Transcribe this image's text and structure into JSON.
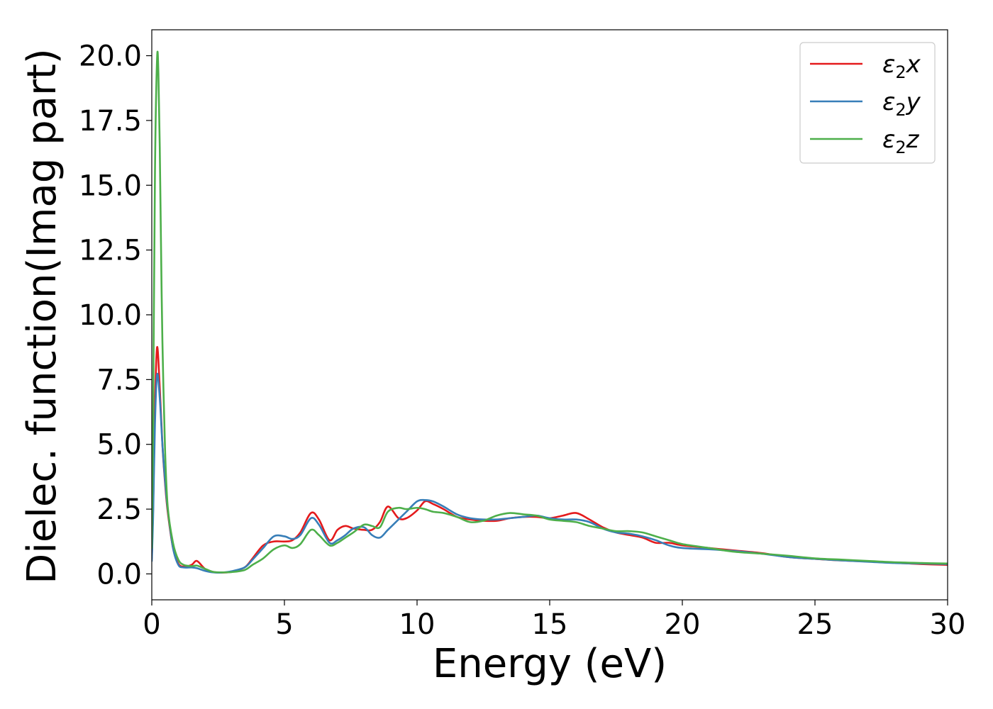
{
  "chart_data": {
    "type": "line",
    "title": "",
    "xlabel": "Energy (eV)",
    "ylabel": "Dielec. function(Imag part)",
    "xlim": [
      0,
      30
    ],
    "ylim": [
      -1.0,
      21.0
    ],
    "x_ticks": [
      0,
      5,
      10,
      15,
      20,
      25,
      30
    ],
    "x_tick_labels": [
      "0",
      "5",
      "10",
      "15",
      "20",
      "25",
      "30"
    ],
    "y_ticks": [
      0.0,
      2.5,
      5.0,
      7.5,
      10.0,
      12.5,
      15.0,
      17.5,
      20.0
    ],
    "y_tick_labels": [
      "0.0",
      "2.5",
      "5.0",
      "7.5",
      "10.0",
      "12.5",
      "15.0",
      "17.5",
      "20.0"
    ],
    "grid": false,
    "legend_position": "top-right",
    "series": [
      {
        "name": "ε2x",
        "legend_base": "ε",
        "legend_sub": "2",
        "legend_suffix": "x",
        "color": "#e41a1c",
        "x": [
          0,
          0.05,
          0.12,
          0.2,
          0.3,
          0.4,
          0.5,
          0.6,
          0.8,
          1.0,
          1.2,
          1.5,
          1.7,
          2.0,
          2.3,
          2.6,
          3.0,
          3.5,
          3.8,
          4.2,
          4.6,
          5.0,
          5.3,
          5.6,
          6.0,
          6.3,
          6.7,
          7.0,
          7.3,
          7.6,
          8.0,
          8.3,
          8.6,
          8.9,
          9.3,
          9.6,
          10.0,
          10.3,
          10.6,
          11.0,
          11.5,
          12.0,
          12.5,
          13.0,
          13.5,
          14.0,
          14.5,
          15.0,
          15.5,
          16.0,
          16.5,
          17.0,
          17.5,
          18.0,
          18.5,
          19.0,
          19.5,
          20.0,
          21.0,
          22.0,
          23.0,
          24.0,
          25.0,
          26.0,
          27.0,
          28.0,
          29.0,
          30.0
        ],
        "values": [
          0.6,
          2.5,
          6.5,
          8.75,
          7.2,
          5.0,
          3.5,
          2.4,
          1.0,
          0.4,
          0.28,
          0.35,
          0.5,
          0.2,
          0.08,
          0.05,
          0.08,
          0.25,
          0.6,
          1.1,
          1.25,
          1.25,
          1.3,
          1.6,
          2.35,
          2.1,
          1.3,
          1.7,
          1.85,
          1.75,
          1.7,
          1.7,
          2.0,
          2.6,
          2.15,
          2.15,
          2.45,
          2.8,
          2.7,
          2.5,
          2.2,
          2.1,
          2.05,
          2.05,
          2.15,
          2.2,
          2.2,
          2.15,
          2.25,
          2.35,
          2.1,
          1.8,
          1.6,
          1.5,
          1.4,
          1.2,
          1.2,
          1.1,
          1.0,
          0.9,
          0.8,
          0.65,
          0.58,
          0.52,
          0.48,
          0.43,
          0.38,
          0.35
        ]
      },
      {
        "name": "ε2y",
        "legend_base": "ε",
        "legend_sub": "2",
        "legend_suffix": "y",
        "color": "#377eb8",
        "x": [
          0,
          0.05,
          0.12,
          0.2,
          0.3,
          0.4,
          0.5,
          0.6,
          0.8,
          1.0,
          1.2,
          1.5,
          1.7,
          2.0,
          2.3,
          2.6,
          3.0,
          3.5,
          3.8,
          4.2,
          4.6,
          5.0,
          5.3,
          5.6,
          6.0,
          6.3,
          6.7,
          7.0,
          7.3,
          7.6,
          8.0,
          8.3,
          8.6,
          8.9,
          9.3,
          9.6,
          10.0,
          10.3,
          10.6,
          11.0,
          11.5,
          12.0,
          12.5,
          13.0,
          13.5,
          14.0,
          14.5,
          15.0,
          15.5,
          16.0,
          16.5,
          17.0,
          17.5,
          18.0,
          18.5,
          19.0,
          19.5,
          20.0,
          21.0,
          22.0,
          23.0,
          24.0,
          25.0,
          26.0,
          27.0,
          28.0,
          29.0,
          30.0
        ],
        "values": [
          0.5,
          2.2,
          5.8,
          7.7,
          6.8,
          5.0,
          3.6,
          2.5,
          1.0,
          0.35,
          0.25,
          0.25,
          0.22,
          0.12,
          0.06,
          0.05,
          0.1,
          0.25,
          0.55,
          1.0,
          1.45,
          1.45,
          1.35,
          1.5,
          2.15,
          1.9,
          1.2,
          1.3,
          1.5,
          1.75,
          1.8,
          1.5,
          1.4,
          1.7,
          2.1,
          2.4,
          2.8,
          2.85,
          2.8,
          2.6,
          2.3,
          2.15,
          2.1,
          2.1,
          2.15,
          2.2,
          2.25,
          2.15,
          2.1,
          2.1,
          2.0,
          1.75,
          1.6,
          1.55,
          1.45,
          1.3,
          1.1,
          1.0,
          0.95,
          0.88,
          0.78,
          0.65,
          0.58,
          0.52,
          0.47,
          0.42,
          0.4,
          0.38
        ]
      },
      {
        "name": "ε2z",
        "legend_base": "ε",
        "legend_sub": "2",
        "legend_suffix": "z",
        "color": "#4daf4a",
        "x": [
          0,
          0.05,
          0.12,
          0.2,
          0.25,
          0.3,
          0.35,
          0.4,
          0.5,
          0.6,
          0.8,
          1.0,
          1.2,
          1.5,
          1.7,
          2.0,
          2.3,
          2.6,
          3.0,
          3.5,
          3.8,
          4.2,
          4.6,
          5.0,
          5.3,
          5.6,
          6.0,
          6.3,
          6.7,
          7.0,
          7.3,
          7.6,
          8.0,
          8.3,
          8.6,
          8.9,
          9.3,
          9.6,
          10.0,
          10.3,
          10.6,
          11.0,
          11.5,
          12.0,
          12.5,
          13.0,
          13.5,
          14.0,
          14.5,
          15.0,
          15.5,
          16.0,
          16.5,
          17.0,
          17.5,
          18.0,
          18.5,
          19.0,
          19.5,
          20.0,
          21.0,
          22.0,
          23.0,
          24.0,
          25.0,
          26.0,
          27.0,
          28.0,
          29.0,
          30.0
        ],
        "values": [
          1.0,
          6.0,
          15.5,
          19.9,
          19.3,
          16.5,
          12.5,
          9.0,
          4.8,
          2.6,
          1.2,
          0.55,
          0.35,
          0.3,
          0.32,
          0.2,
          0.08,
          0.06,
          0.07,
          0.15,
          0.35,
          0.6,
          0.95,
          1.1,
          1.0,
          1.15,
          1.7,
          1.5,
          1.1,
          1.2,
          1.4,
          1.6,
          1.9,
          1.85,
          1.8,
          2.4,
          2.55,
          2.5,
          2.55,
          2.5,
          2.4,
          2.35,
          2.2,
          2.0,
          2.05,
          2.25,
          2.35,
          2.3,
          2.25,
          2.1,
          2.05,
          2.0,
          1.85,
          1.75,
          1.65,
          1.65,
          1.6,
          1.45,
          1.3,
          1.15,
          1.0,
          0.85,
          0.78,
          0.7,
          0.6,
          0.55,
          0.5,
          0.45,
          0.42,
          0.4
        ]
      }
    ]
  }
}
